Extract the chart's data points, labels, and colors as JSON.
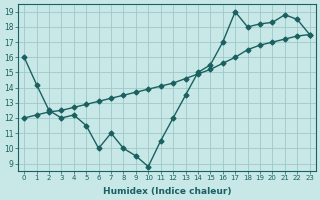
{
  "title": "",
  "xlabel": "Humidex (Indice chaleur)",
  "ylabel": "",
  "bg_color": "#c8e8e8",
  "grid_color": "#a0c8c8",
  "line_color": "#1a6060",
  "xlim": [
    -0.5,
    23.5
  ],
  "ylim": [
    8.5,
    19.5
  ],
  "xticks": [
    0,
    1,
    2,
    3,
    4,
    5,
    6,
    7,
    8,
    9,
    10,
    11,
    12,
    13,
    14,
    15,
    16,
    17,
    18,
    19,
    20,
    21,
    22,
    23
  ],
  "yticks": [
    9,
    10,
    11,
    12,
    13,
    14,
    15,
    16,
    17,
    18,
    19
  ],
  "series1_x": [
    0,
    1,
    2,
    3,
    4,
    5,
    6,
    7,
    8,
    9,
    10,
    11,
    12,
    13,
    14,
    15,
    16,
    17,
    18,
    19,
    20,
    21,
    22,
    23
  ],
  "series1_y": [
    16.0,
    14.2,
    12.5,
    12.0,
    12.2,
    11.5,
    10.0,
    11.0,
    10.0,
    9.5,
    8.8,
    10.5,
    12.0,
    13.5,
    15.0,
    15.5,
    17.0,
    19.0,
    18.0,
    18.2,
    18.3,
    18.8,
    18.5,
    17.5
  ],
  "series2_x": [
    0,
    1,
    2,
    3,
    4,
    5,
    6,
    7,
    8,
    9,
    10,
    11,
    12,
    13,
    14,
    15,
    16,
    17,
    18,
    19,
    20,
    21,
    22,
    23
  ],
  "series2_y": [
    12.0,
    12.2,
    12.4,
    12.5,
    12.7,
    12.9,
    13.1,
    13.3,
    13.5,
    13.7,
    13.9,
    14.1,
    14.3,
    14.6,
    14.9,
    15.2,
    15.6,
    16.0,
    16.5,
    16.8,
    17.0,
    17.2,
    17.4,
    17.5
  ],
  "marker": "D",
  "markersize": 2.5,
  "linewidth": 1.0
}
